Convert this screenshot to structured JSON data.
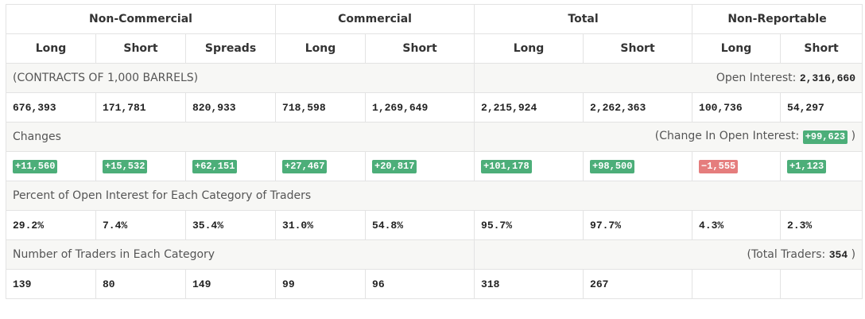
{
  "header": {
    "groups": [
      "Non-Commercial",
      "Commercial",
      "Total",
      "Non-Reportable"
    ],
    "columns": [
      "Long",
      "Short",
      "Spreads",
      "Long",
      "Short",
      "Long",
      "Short",
      "Long",
      "Short"
    ]
  },
  "sections": [
    {
      "label": "(CONTRACTS OF 1,000 BARRELS)",
      "right_label": "Open Interest:",
      "right_value": "2,316,660",
      "values": [
        "676,393",
        "171,781",
        "820,933",
        "718,598",
        "1,269,649",
        "2,215,924",
        "2,262,363",
        "100,736",
        "54,297"
      ]
    },
    {
      "label": "Changes",
      "right_label": "(Change In Open Interest:",
      "right_value": "+99,623",
      "right_suffix": ")",
      "values": [
        "+11,560",
        "+15,532",
        "+62,151",
        "+27,467",
        "+20,817",
        "+101,178",
        "+98,500",
        "−1,555",
        "+1,123"
      ]
    },
    {
      "label": "Percent of Open Interest for Each Category of Traders",
      "values": [
        "29.2%",
        "7.4%",
        "35.4%",
        "31.0%",
        "54.8%",
        "95.7%",
        "97.7%",
        "4.3%",
        "2.3%"
      ]
    },
    {
      "label": "Number of Traders in Each Category",
      "right_label": "(Total Traders:",
      "right_value": "354",
      "right_suffix": ")",
      "values": [
        "139",
        "80",
        "149",
        "99",
        "96",
        "318",
        "267"
      ]
    }
  ]
}
